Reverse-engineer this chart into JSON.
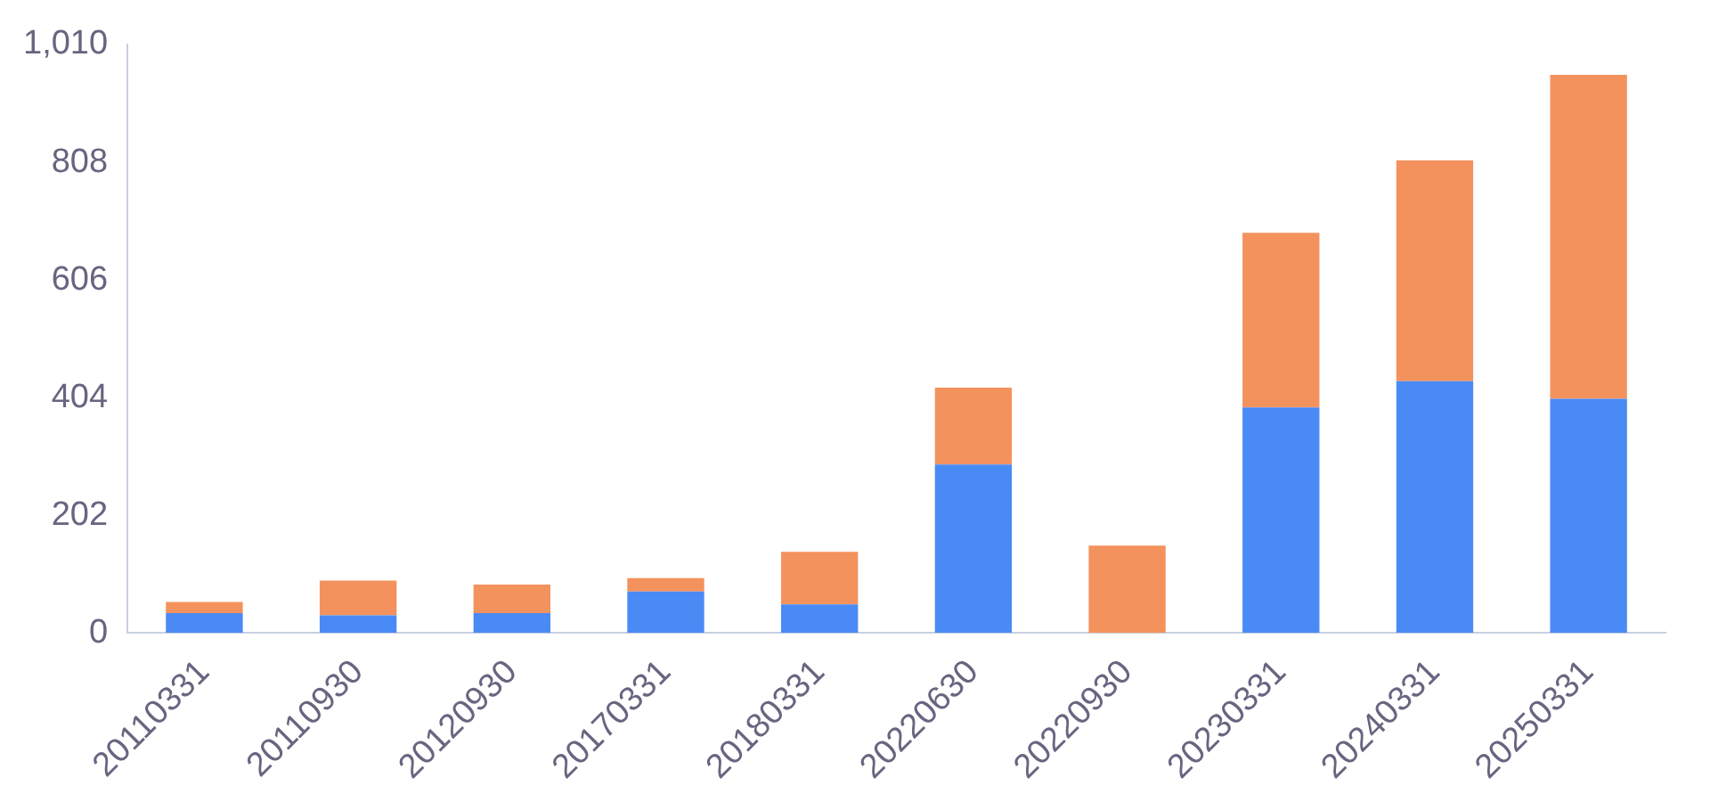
{
  "chart_data": {
    "type": "bar",
    "stacked": true,
    "categories": [
      "20110331",
      "20110930",
      "20120930",
      "20170331",
      "20180331",
      "20220630",
      "20220930",
      "20230331",
      "20240331",
      "20250331"
    ],
    "series": [
      {
        "color": "#4a8af4",
        "values": [
          34,
          30,
          34,
          71,
          49,
          289,
          0,
          387,
          432,
          402
        ]
      },
      {
        "color": "#f4925e",
        "values": [
          19,
          60,
          49,
          23,
          90,
          132,
          150,
          300,
          379,
          556
        ]
      }
    ],
    "ylim": [
      0,
      1010
    ],
    "yticks": [
      0,
      202,
      404,
      606,
      808,
      {
        "value": 1010,
        "label": "1,010"
      }
    ]
  }
}
